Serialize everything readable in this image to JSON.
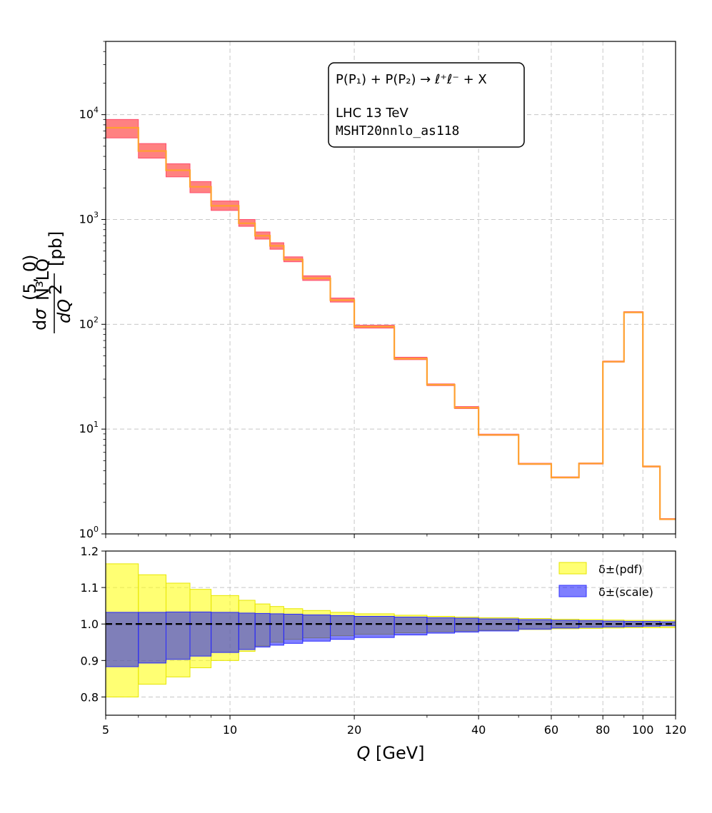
{
  "chart_data": [
    {
      "type": "area",
      "panel": "main",
      "xscale": "log",
      "yscale": "log",
      "xlim": [
        5,
        120
      ],
      "ylim": [
        1,
        50000
      ],
      "xlabel": "Q [GeV]",
      "ylabel": "dσ^(5,0)_N3LO / dQ² [pb]",
      "ytick_labels": [
        "10^0",
        "10^1",
        "10^2",
        "10^3",
        "10^4"
      ],
      "edges": [
        5,
        6,
        7,
        8,
        9,
        10.5,
        11.5,
        12.5,
        13.5,
        15,
        17.5,
        20,
        25,
        30,
        35,
        40,
        50,
        60,
        70,
        80,
        90,
        100,
        110,
        120
      ],
      "central": [
        7500,
        4500,
        2950,
        2050,
        1350,
        920,
        700,
        560,
        415,
        275,
        170,
        95,
        47,
        26.5,
        16,
        8.8,
        4.65,
        3.45,
        4.7,
        44,
        130,
        4.4,
        1.38
      ],
      "band_low": [
        6000,
        3850,
        2550,
        1800,
        1220,
        860,
        650,
        520,
        395,
        262,
        163,
        92,
        46,
        26,
        15.7,
        8.7,
        4.6,
        3.42,
        4.66,
        43.6,
        129,
        4.36,
        1.37
      ],
      "band_high": [
        9000,
        5300,
        3400,
        2300,
        1500,
        1000,
        760,
        600,
        440,
        290,
        178,
        98,
        48.5,
        27,
        16.4,
        8.95,
        4.72,
        3.5,
        4.75,
        44.6,
        132,
        4.45,
        1.4
      ],
      "annotation": {
        "line1": "P(P₁) + P(P₂) → ℓ⁺ℓ⁻ + X",
        "line2": "LHC 13 TeV",
        "line3": "MSHT20nnlo_as118"
      }
    },
    {
      "type": "area",
      "panel": "ratio",
      "xscale": "log",
      "xlim": [
        5,
        120
      ],
      "ylim": [
        0.75,
        1.2
      ],
      "xlabel": "Q [GeV]",
      "yticks": [
        0.8,
        0.9,
        1.0,
        1.1,
        1.2
      ],
      "ytick_labels": [
        "0.8",
        "0.9",
        "1.0",
        "1.1",
        "1.2"
      ],
      "xticks": [
        5,
        10,
        20,
        40,
        60,
        80,
        100,
        120
      ],
      "xtick_labels": [
        "5",
        "10",
        "20",
        "40",
        "60",
        "80",
        "100",
        "120"
      ],
      "edges": [
        5,
        6,
        7,
        8,
        9,
        10.5,
        11.5,
        12.5,
        13.5,
        15,
        17.5,
        20,
        25,
        30,
        35,
        40,
        50,
        60,
        70,
        80,
        90,
        100,
        110,
        120
      ],
      "series": [
        {
          "name": "δ±(pdf)",
          "color": "#ffff00",
          "low": [
            0.8,
            0.835,
            0.855,
            0.88,
            0.9,
            0.925,
            0.94,
            0.95,
            0.958,
            0.962,
            0.968,
            0.972,
            0.976,
            0.979,
            0.981,
            0.983,
            0.985,
            0.987,
            0.988,
            0.989,
            0.99,
            0.99,
            0.99
          ],
          "high": [
            1.165,
            1.135,
            1.112,
            1.095,
            1.078,
            1.065,
            1.055,
            1.048,
            1.042,
            1.037,
            1.032,
            1.028,
            1.024,
            1.021,
            1.019,
            1.017,
            1.015,
            1.013,
            1.012,
            1.011,
            1.01,
            1.01,
            1.01
          ]
        },
        {
          "name": "δ±(scale)",
          "color": "#0000ff",
          "low": [
            0.883,
            0.893,
            0.903,
            0.912,
            0.922,
            0.93,
            0.937,
            0.942,
            0.947,
            0.953,
            0.958,
            0.963,
            0.97,
            0.975,
            0.978,
            0.981,
            0.986,
            0.989,
            0.991,
            0.992,
            0.993,
            0.994,
            0.995
          ],
          "high": [
            1.032,
            1.032,
            1.033,
            1.033,
            1.032,
            1.03,
            1.029,
            1.028,
            1.027,
            1.025,
            1.023,
            1.021,
            1.019,
            1.017,
            1.016,
            1.014,
            1.012,
            1.01,
            1.009,
            1.008,
            1.007,
            1.007,
            1.006
          ]
        }
      ],
      "reference_line": 1.0,
      "legend_position": "top-right"
    }
  ]
}
